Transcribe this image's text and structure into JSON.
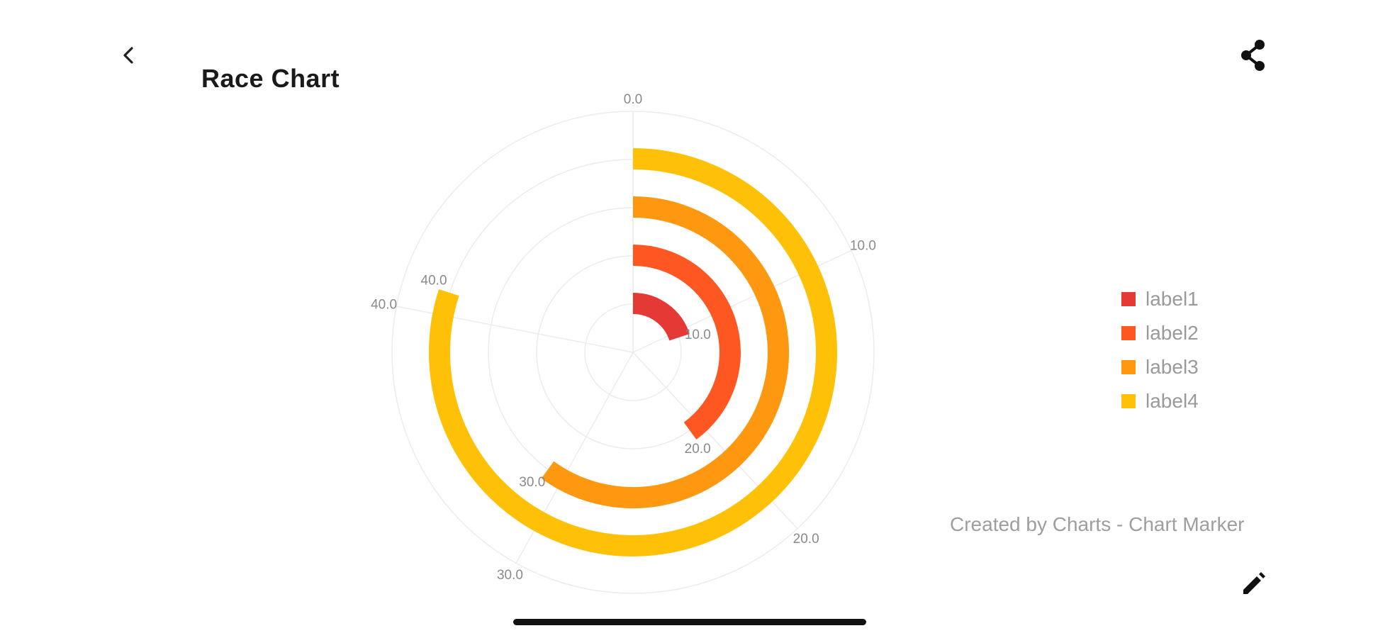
{
  "header": {
    "title": "Race Chart",
    "back_icon": "chevron-left-icon",
    "share_icon": "share-icon"
  },
  "footer": {
    "credit": "Created by Charts - Chart Marker",
    "edit_icon": "pencil-icon"
  },
  "chart_data": {
    "type": "race",
    "max_value": 50,
    "start_angle": "top",
    "direction": "clockwise",
    "series": [
      {
        "name": "label1",
        "value": 10,
        "color": "#e53935"
      },
      {
        "name": "label2",
        "value": 20,
        "color": "#fe5722"
      },
      {
        "name": "label3",
        "value": 30,
        "color": "#fe9811"
      },
      {
        "name": "label4",
        "value": 40,
        "color": "#ffc108"
      }
    ],
    "angle_ticks": [
      "0.0",
      "10.0",
      "20.0",
      "30.0",
      "40.0"
    ],
    "legend_position": "right"
  }
}
